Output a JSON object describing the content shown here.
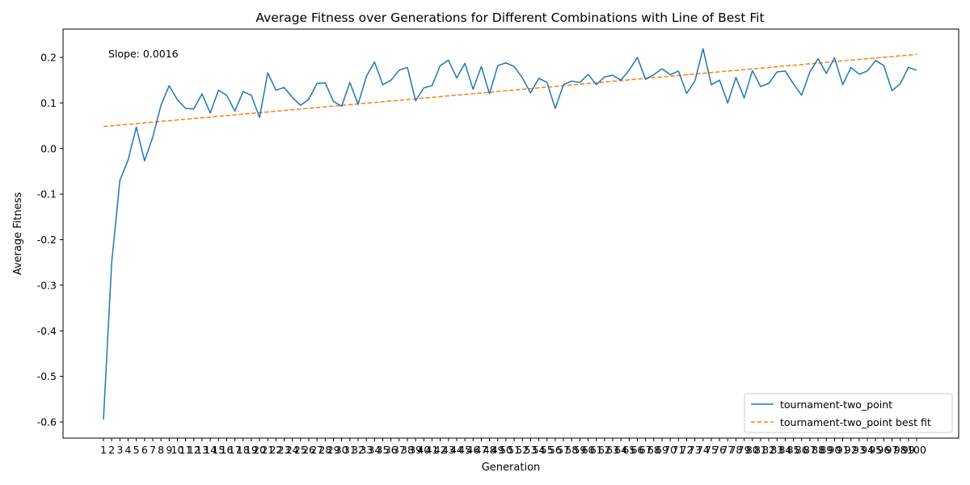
{
  "chart_data": {
    "type": "line",
    "title": "Average Fitness over Generations for Different Combinations with Line of Best Fit",
    "xlabel": "Generation",
    "ylabel": "Average Fitness",
    "ylim": [
      -0.635,
      0.255
    ],
    "yticks": [
      -0.6,
      -0.5,
      -0.4,
      -0.3,
      -0.2,
      -0.1,
      0.0,
      0.1,
      0.2
    ],
    "x": [
      1,
      2,
      3,
      4,
      5,
      6,
      7,
      8,
      9,
      10,
      11,
      12,
      13,
      14,
      15,
      16,
      17,
      18,
      19,
      20,
      21,
      22,
      23,
      24,
      25,
      26,
      27,
      28,
      29,
      30,
      31,
      32,
      33,
      34,
      35,
      36,
      37,
      38,
      39,
      40,
      41,
      42,
      43,
      44,
      45,
      46,
      47,
      48,
      49,
      50,
      51,
      52,
      53,
      54,
      55,
      56,
      57,
      58,
      59,
      60,
      61,
      62,
      63,
      64,
      65,
      66,
      67,
      68,
      69,
      70,
      71,
      72,
      73,
      74,
      75,
      76,
      77,
      78,
      79,
      80,
      81,
      82,
      83,
      84,
      85,
      86,
      87,
      88,
      89,
      90,
      91,
      92,
      93,
      94,
      95,
      96,
      97,
      98,
      99,
      100
    ],
    "grid": false,
    "legend_position": "lower right",
    "annotation": "Slope: 0.0016",
    "series": [
      {
        "name": "tournament-two_point",
        "color": "#1f77b4",
        "style": "solid",
        "values": [
          -0.595,
          -0.25,
          -0.07,
          -0.025,
          0.047,
          -0.027,
          0.025,
          0.095,
          0.138,
          0.107,
          0.088,
          0.087,
          0.12,
          0.078,
          0.128,
          0.117,
          0.082,
          0.125,
          0.117,
          0.068,
          0.166,
          0.128,
          0.134,
          0.112,
          0.095,
          0.108,
          0.143,
          0.144,
          0.103,
          0.093,
          0.145,
          0.097,
          0.158,
          0.19,
          0.14,
          0.15,
          0.172,
          0.178,
          0.105,
          0.133,
          0.138,
          0.182,
          0.194,
          0.155,
          0.187,
          0.13,
          0.18,
          0.12,
          0.182,
          0.188,
          0.18,
          0.155,
          0.122,
          0.154,
          0.145,
          0.088,
          0.14,
          0.148,
          0.145,
          0.163,
          0.14,
          0.157,
          0.161,
          0.15,
          0.172,
          0.2,
          0.152,
          0.162,
          0.175,
          0.162,
          0.17,
          0.121,
          0.148,
          0.219,
          0.14,
          0.15,
          0.1,
          0.156,
          0.111,
          0.171,
          0.136,
          0.143,
          0.168,
          0.17,
          0.142,
          0.117,
          0.168,
          0.197,
          0.165,
          0.199,
          0.14,
          0.178,
          0.163,
          0.17,
          0.193,
          0.182,
          0.127,
          0.142,
          0.178,
          0.172
        ]
      },
      {
        "name": "tournament-two_point best fit",
        "color": "#ff7f0e",
        "style": "dashed",
        "intercept": 0.0467,
        "slope": 0.0016
      }
    ]
  }
}
